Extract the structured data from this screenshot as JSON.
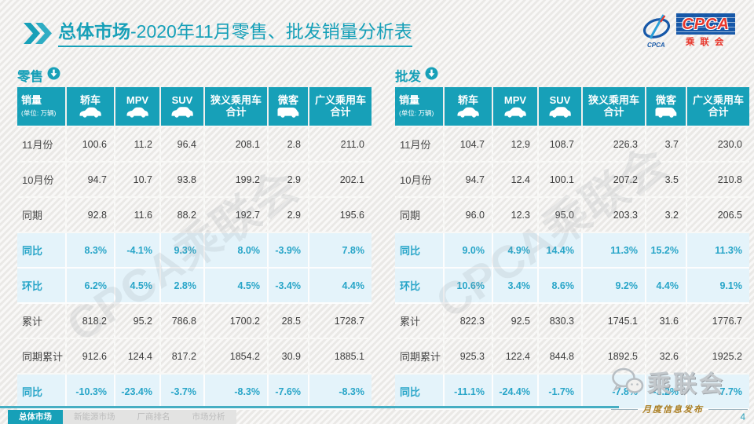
{
  "title": {
    "emphasis": "总体市场",
    "rest": "-2020年11月零售、批发销量分析表"
  },
  "logo": {
    "swoosh_text": "CPCA",
    "box_text": "CPCA",
    "box_subtext": "乘联会"
  },
  "watermark_text": "CPCA乘联会",
  "tables": [
    {
      "section_label": "零售",
      "columns": [
        {
          "label": "销量",
          "sub": "(单位: 万辆)"
        },
        {
          "label": "轿车",
          "icon": "sedan-icon"
        },
        {
          "label": "MPV",
          "icon": "sedan-icon"
        },
        {
          "label": "SUV",
          "icon": "suv-icon"
        },
        {
          "label": "狭义乘用车",
          "label2": "合计"
        },
        {
          "label": "微客",
          "icon": "van-icon"
        },
        {
          "label": "广义乘用车",
          "label2": "合计"
        }
      ],
      "rows": [
        {
          "label": "11月份",
          "type": "data",
          "cells": [
            "100.6",
            "11.2",
            "96.4",
            "208.1",
            "2.8",
            "211.0"
          ]
        },
        {
          "label": "10月份",
          "type": "data",
          "cells": [
            "94.7",
            "10.7",
            "93.8",
            "199.2",
            "2.9",
            "202.1"
          ]
        },
        {
          "label": "同期",
          "type": "data",
          "cells": [
            "92.8",
            "11.6",
            "88.2",
            "192.7",
            "2.9",
            "195.6"
          ]
        },
        {
          "label": "同比",
          "type": "pct",
          "cells": [
            "8.3%",
            "-4.1%",
            "9.3%",
            "8.0%",
            "-3.9%",
            "7.8%"
          ]
        },
        {
          "label": "环比",
          "type": "pct",
          "cells": [
            "6.2%",
            "4.5%",
            "2.8%",
            "4.5%",
            "-3.4%",
            "4.4%"
          ]
        },
        {
          "label": "累计",
          "type": "data",
          "cells": [
            "818.2",
            "95.2",
            "786.8",
            "1700.2",
            "28.5",
            "1728.7"
          ]
        },
        {
          "label": "同期累计",
          "type": "data",
          "cells": [
            "912.6",
            "124.4",
            "817.2",
            "1854.2",
            "30.9",
            "1885.1"
          ]
        },
        {
          "label": "同比",
          "type": "pct",
          "cells": [
            "-10.3%",
            "-23.4%",
            "-3.7%",
            "-8.3%",
            "-7.6%",
            "-8.3%"
          ]
        }
      ]
    },
    {
      "section_label": "批发",
      "columns": [
        {
          "label": "销量",
          "sub": "(单位: 万辆)"
        },
        {
          "label": "轿车",
          "icon": "sedan-icon"
        },
        {
          "label": "MPV",
          "icon": "sedan-icon"
        },
        {
          "label": "SUV",
          "icon": "suv-icon"
        },
        {
          "label": "狭义乘用车",
          "label2": "合计"
        },
        {
          "label": "微客",
          "icon": "van-icon"
        },
        {
          "label": "广义乘用车",
          "label2": "合计"
        }
      ],
      "rows": [
        {
          "label": "11月份",
          "type": "data",
          "cells": [
            "104.7",
            "12.9",
            "108.7",
            "226.3",
            "3.7",
            "230.0"
          ]
        },
        {
          "label": "10月份",
          "type": "data",
          "cells": [
            "94.7",
            "12.4",
            "100.1",
            "207.2",
            "3.5",
            "210.8"
          ]
        },
        {
          "label": "同期",
          "type": "data",
          "cells": [
            "96.0",
            "12.3",
            "95.0",
            "203.3",
            "3.2",
            "206.5"
          ]
        },
        {
          "label": "同比",
          "type": "pct",
          "cells": [
            "9.0%",
            "4.9%",
            "14.4%",
            "11.3%",
            "15.2%",
            "11.3%"
          ]
        },
        {
          "label": "环比",
          "type": "pct",
          "cells": [
            "10.6%",
            "3.4%",
            "8.6%",
            "9.2%",
            "4.4%",
            "9.1%"
          ]
        },
        {
          "label": "累计",
          "type": "data",
          "cells": [
            "822.3",
            "92.5",
            "830.3",
            "1745.1",
            "31.6",
            "1776.7"
          ]
        },
        {
          "label": "同期累计",
          "type": "data",
          "cells": [
            "925.3",
            "122.4",
            "844.8",
            "1892.5",
            "32.6",
            "1925.2"
          ]
        },
        {
          "label": "同比",
          "type": "pct",
          "cells": [
            "-11.1%",
            "-24.4%",
            "-1.7%",
            "-7.8%",
            "-3.2%",
            "-7.7%"
          ]
        }
      ]
    }
  ],
  "footer": {
    "tabs": [
      {
        "label": "总体市场",
        "active": true
      },
      {
        "label": "新能源市场",
        "active": false
      },
      {
        "label": "厂商排名",
        "active": false
      },
      {
        "label": "市场分析",
        "active": false
      }
    ],
    "watermark_label": "乘联会",
    "publication_label": "月度信息发布",
    "page_number": "4"
  },
  "colors": {
    "accent": "#17a0b8",
    "row_highlight": "#e4f3fa",
    "gold": "#aa7e22",
    "logo_blue": "#1758a8",
    "logo_red": "#e8372c"
  }
}
